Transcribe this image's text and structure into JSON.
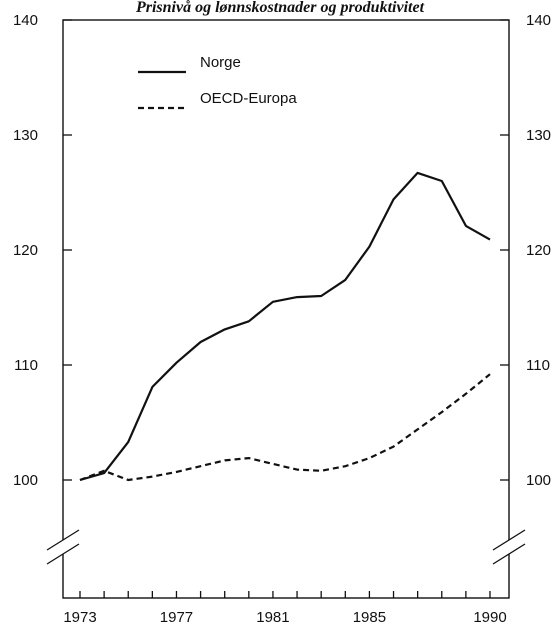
{
  "chart_data": {
    "type": "line",
    "title": "Prisnivå og lønnskostnader og produktivitet",
    "x": [
      1973,
      1974,
      1975,
      1976,
      1977,
      1978,
      1979,
      1980,
      1981,
      1982,
      1983,
      1984,
      1985,
      1986,
      1987,
      1988,
      1989,
      1990
    ],
    "x_ticks": [
      "1973",
      "1977",
      "1981",
      "1985",
      "1990"
    ],
    "x_tick_values": [
      1973,
      1977,
      1981,
      1985,
      1990
    ],
    "y_ticks": [
      "100",
      "110",
      "120",
      "130",
      "140"
    ],
    "y_tick_values": [
      100,
      110,
      120,
      130,
      140
    ],
    "ylim": [
      95,
      140
    ],
    "xlim": [
      1972.5,
      1990.3
    ],
    "axis_break": "y",
    "grid": false,
    "legend_position": "top-left",
    "series": [
      {
        "name": "Norge",
        "style": "solid",
        "color": "#111111",
        "values": [
          100.0,
          100.6,
          103.3,
          108.1,
          110.2,
          112.0,
          113.1,
          113.8,
          115.5,
          115.9,
          116.0,
          117.4,
          120.3,
          124.4,
          126.7,
          126.0,
          122.1,
          120.9
        ]
      },
      {
        "name": "OECD-Europa",
        "style": "dashed",
        "color": "#111111",
        "values": [
          100.0,
          100.8,
          100.0,
          100.3,
          100.7,
          101.2,
          101.7,
          101.9,
          101.4,
          100.9,
          100.8,
          101.2,
          101.9,
          102.9,
          104.4,
          105.9,
          107.5,
          109.2
        ]
      }
    ]
  }
}
